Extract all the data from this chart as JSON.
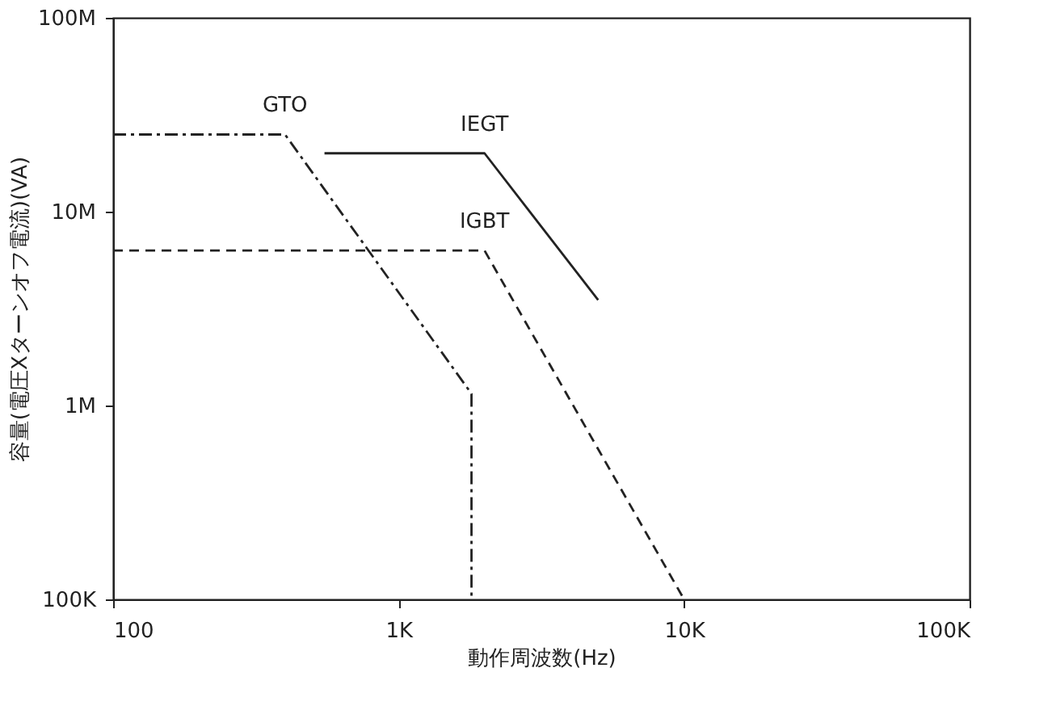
{
  "chart_data": {
    "type": "line",
    "xlabel": "動作周波数(Hz)",
    "ylabel": "容量(電圧Xターンオフ電流)(VA)",
    "log": "xy",
    "grid": false,
    "marker": "none",
    "xlim": [
      100,
      100000
    ],
    "ylim": [
      100000,
      100000000
    ],
    "xticks": [
      {
        "value": 100,
        "label": "100"
      },
      {
        "value": 1000,
        "label": "1K"
      },
      {
        "value": 10000,
        "label": "10K"
      },
      {
        "value": 100000,
        "label": "100K"
      }
    ],
    "yticks": [
      {
        "value": 100000,
        "label": "100K"
      },
      {
        "value": 1000000,
        "label": "1M"
      },
      {
        "value": 10000000,
        "label": "10M"
      },
      {
        "value": 100000000,
        "label": "100M"
      }
    ],
    "series": [
      {
        "name": "GTO",
        "color": "#222222",
        "line_style": "dashdot",
        "x": [
          100,
          400,
          1800,
          1800
        ],
        "values": [
          25000000,
          25000000,
          1150000,
          100000
        ]
      },
      {
        "name": "IEGT",
        "color": "#222222",
        "line_style": "solid",
        "x": [
          550,
          2000,
          5000
        ],
        "values": [
          20000000,
          20000000,
          3500000
        ]
      },
      {
        "name": "IGBT",
        "color": "#222222",
        "line_style": "dashed",
        "x": [
          100,
          2000,
          10000
        ],
        "values": [
          6300000,
          6300000,
          100000
        ]
      }
    ]
  }
}
